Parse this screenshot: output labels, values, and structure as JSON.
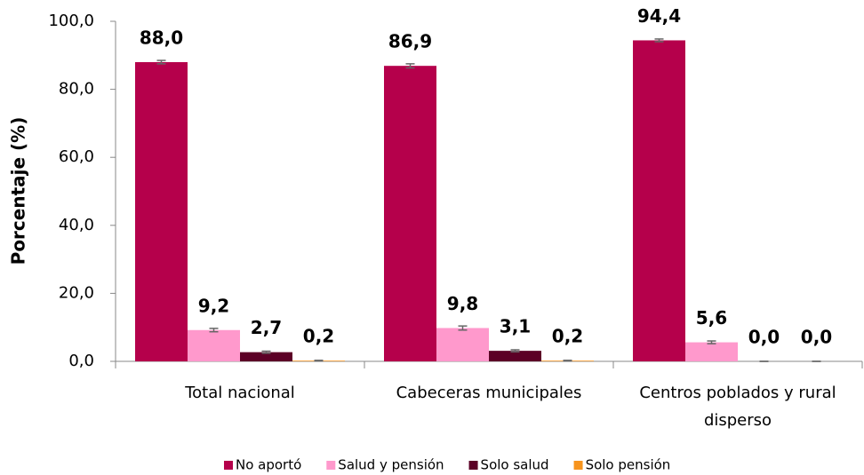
{
  "chart_data": {
    "type": "bar",
    "y_label": "Porcentaje (%)",
    "categories": [
      "Total nacional",
      "Cabeceras municipales",
      "Centros poblados y rural disperso"
    ],
    "series": [
      {
        "name": "No aportó",
        "color": "#b5004b",
        "values": [
          88.0,
          86.9,
          94.4
        ],
        "value_labels": [
          "88,0",
          "86,9",
          "94,4"
        ],
        "errors": [
          0.5,
          0.6,
          0.4
        ]
      },
      {
        "name": "Salud y pensión",
        "color": "#ff99cc",
        "values": [
          9.2,
          9.8,
          5.6
        ],
        "value_labels": [
          "9,2",
          "9,8",
          "5,6"
        ],
        "errors": [
          0.5,
          0.6,
          0.4
        ]
      },
      {
        "name": "Solo salud",
        "color": "#5c0026",
        "values": [
          2.7,
          3.1,
          0.0
        ],
        "value_labels": [
          "2,7",
          "3,1",
          "0,0"
        ],
        "errors": [
          0.3,
          0.3,
          0.0
        ]
      },
      {
        "name": "Solo pensión",
        "color": "#f7941d",
        "values": [
          0.2,
          0.2,
          0.0
        ],
        "value_labels": [
          "0,2",
          "0,2",
          "0,0"
        ],
        "errors": [
          0.1,
          0.1,
          0.0
        ]
      }
    ],
    "ylim": [
      0,
      100
    ],
    "yticks": [
      {
        "value": 0,
        "label": "0,0"
      },
      {
        "value": 20,
        "label": "20,0"
      },
      {
        "value": 40,
        "label": "40,0"
      },
      {
        "value": 60,
        "label": "60,0"
      },
      {
        "value": 80,
        "label": "80,0"
      },
      {
        "value": 100,
        "label": "100,0"
      }
    ],
    "legend": "bottom",
    "grid": false
  }
}
